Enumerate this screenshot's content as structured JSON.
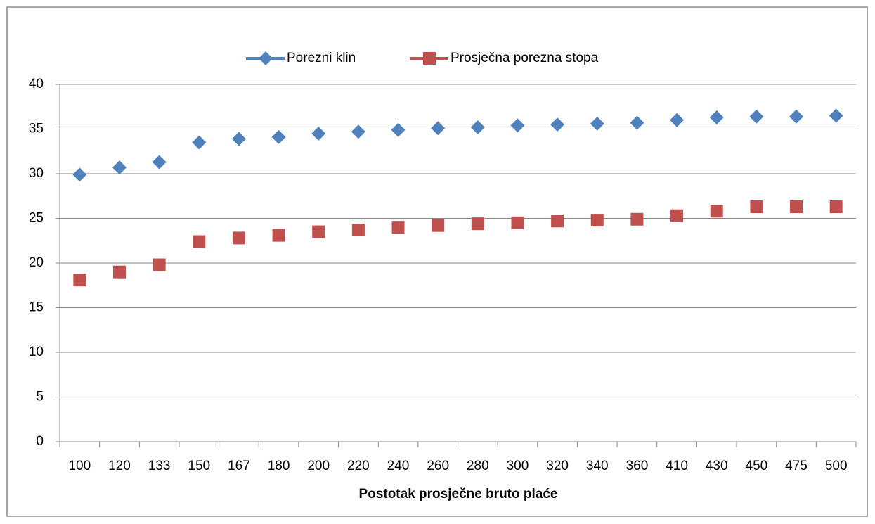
{
  "chart_data": {
    "type": "line",
    "show_lines": false,
    "x_label": "Postotak prosječne bruto plaće",
    "categories": [
      "100",
      "120",
      "133",
      "150",
      "167",
      "180",
      "200",
      "220",
      "240",
      "260",
      "280",
      "300",
      "320",
      "340",
      "360",
      "410",
      "430",
      "450",
      "475",
      "500"
    ],
    "series": [
      {
        "name": "Porezni klin",
        "color": "#4f81bd",
        "marker": "diamond",
        "values": [
          29.9,
          30.7,
          31.3,
          33.5,
          33.9,
          34.1,
          34.5,
          34.7,
          34.9,
          35.1,
          35.2,
          35.4,
          35.5,
          35.6,
          35.7,
          36.0,
          36.3,
          36.4,
          36.4,
          36.5
        ]
      },
      {
        "name": "Prosječna porezna stopa",
        "color": "#c0504d",
        "marker": "square",
        "values": [
          18.1,
          19.0,
          19.8,
          22.4,
          22.8,
          23.1,
          23.5,
          23.7,
          24.0,
          24.2,
          24.4,
          24.5,
          24.7,
          24.8,
          24.9,
          25.3,
          25.8,
          26.3,
          26.3,
          26.3
        ]
      }
    ],
    "ylim": [
      0,
      40
    ],
    "yticks": [
      0,
      5,
      10,
      15,
      20,
      25,
      30,
      35,
      40
    ],
    "grid": true,
    "legend": "top"
  }
}
